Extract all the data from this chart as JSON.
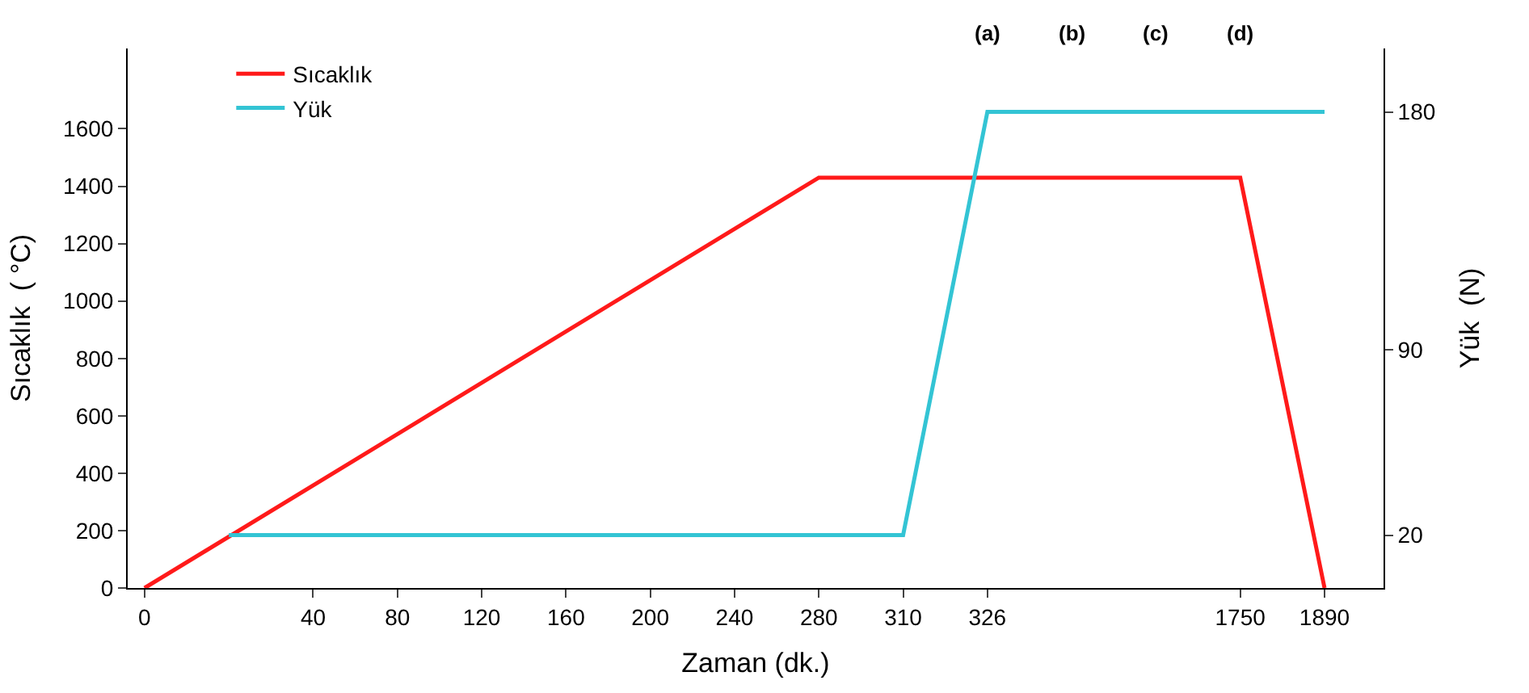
{
  "chart_data": {
    "type": "line",
    "categories": [
      "0",
      null,
      "40",
      "80",
      "120",
      "160",
      "200",
      "240",
      "280",
      "310",
      "326",
      null,
      null,
      "1750",
      "1890"
    ],
    "series": [
      {
        "name": "Sıcaklık",
        "color": "#ff1a1a",
        "values": [
          0,
          null,
          null,
          null,
          null,
          null,
          null,
          null,
          1430,
          null,
          null,
          null,
          null,
          1430,
          0
        ]
      },
      {
        "name": "Yük",
        "color": "#33c4d4",
        "axis": "y2",
        "values": [
          null,
          20,
          null,
          null,
          null,
          null,
          null,
          null,
          null,
          20,
          180,
          null,
          null,
          null,
          180
        ]
      }
    ],
    "xlabel": "Zaman (dk.)",
    "ylabel": "Sıcaklık  ( °C)",
    "y2label": "Yük  (N)",
    "ylim": [
      0,
      1880
    ],
    "yticks": [
      0,
      200,
      400,
      600,
      800,
      1000,
      1200,
      1400,
      1600
    ],
    "y2lim": [
      0,
      204
    ],
    "y2ticks": [
      20,
      90,
      180
    ],
    "annotations": [
      "(a)",
      "(b)",
      "(c)",
      "(d)"
    ],
    "legend": "top left",
    "marker": "none",
    "line_style": "solid"
  }
}
